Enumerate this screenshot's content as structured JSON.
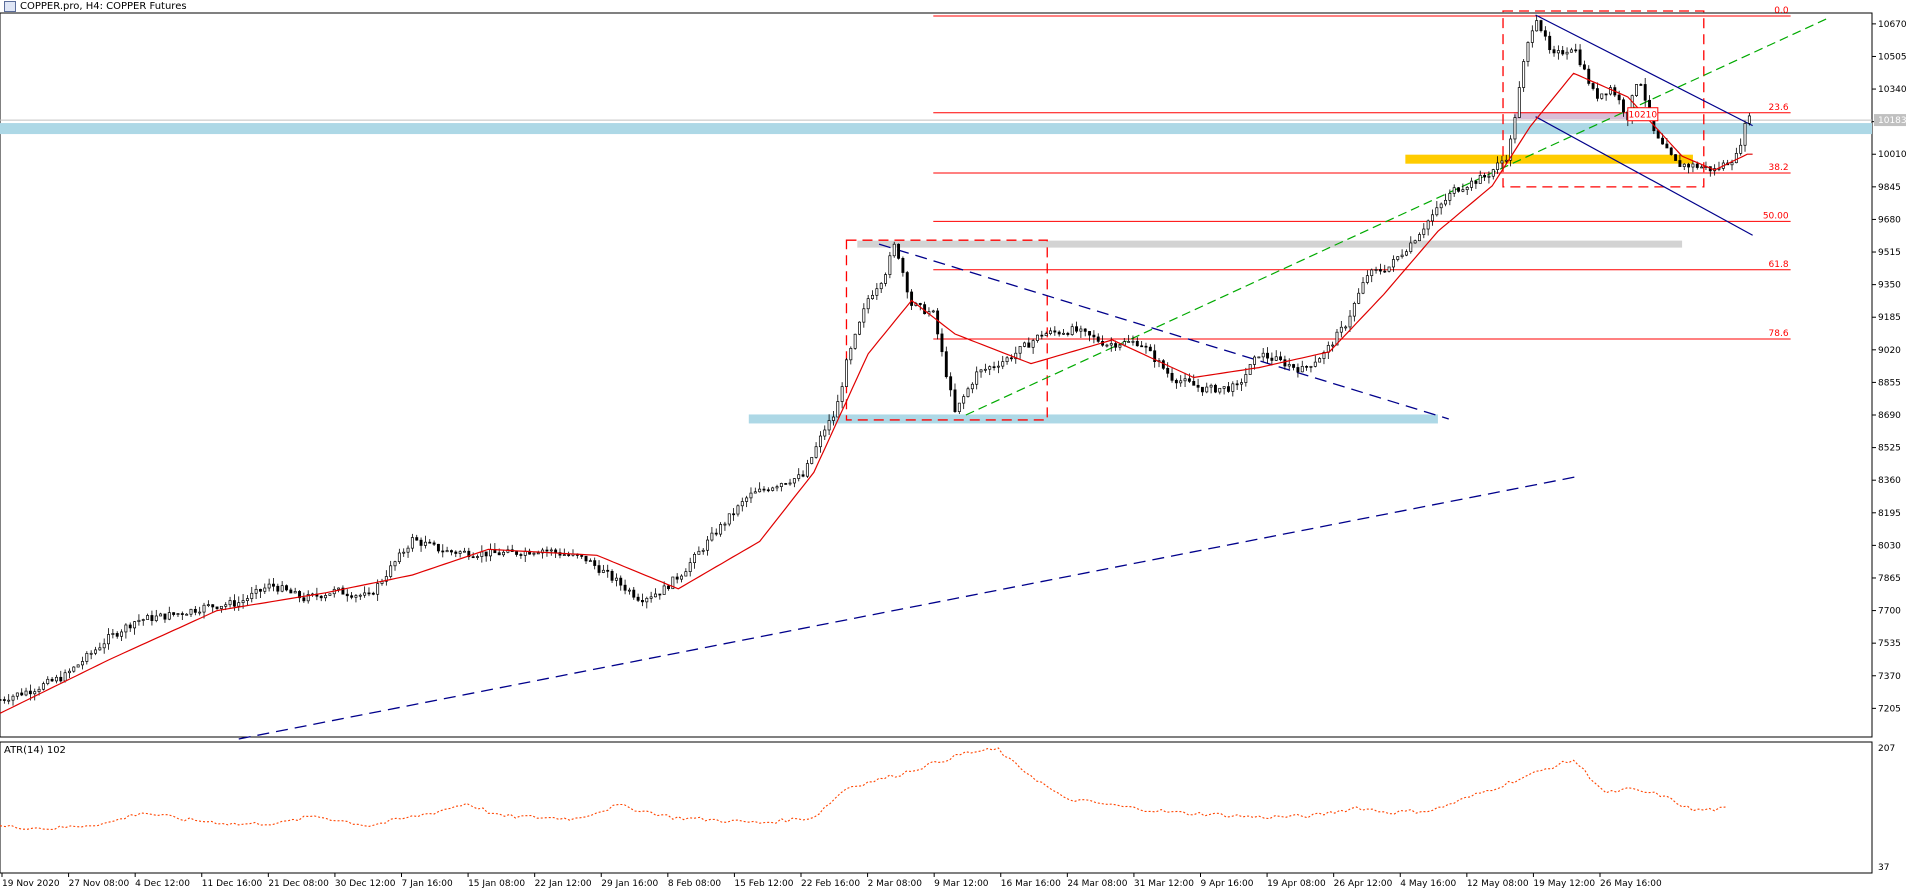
{
  "header": {
    "title": "COPPER.pro, H4:  COPPER Futures",
    "icon": "chart-window-icon"
  },
  "colors": {
    "candle": "#000000",
    "ma": "#e00000",
    "fib": "#ff0000",
    "support_zone": "#add8e6",
    "resistance_zone": "#d3d3d3",
    "yellow_zone": "#ffcc00",
    "purple_zone": "#d8bfd8",
    "channel": "#00008b",
    "trend_green": "#00aa00",
    "atr": "#ff4500",
    "price_marker": "#c0c0c0"
  },
  "chart_data": {
    "type": "candlestick",
    "symbol": "COPPER.pro",
    "timeframe": "H4",
    "description_text": "COPPER Futures",
    "y_ticks": [
      10670,
      10505,
      10340,
      10175,
      10010,
      9845,
      9680,
      9515,
      9350,
      9185,
      9020,
      8855,
      8690,
      8525,
      8360,
      8195,
      8030,
      7865,
      7700,
      7535,
      7370,
      7205
    ],
    "y_range": [
      7060,
      10725
    ],
    "current_price_label": "10183",
    "current_price": 10183,
    "x_labels": [
      "19 Nov 2020",
      "27 Nov 08:00",
      "4 Dec 12:00",
      "11 Dec 16:00",
      "21 Dec 08:00",
      "30 Dec 12:00",
      "7 Jan 16:00",
      "15 Jan 08:00",
      "22 Jan 12:00",
      "29 Jan 16:00",
      "8 Feb 08:00",
      "15 Feb 12:00",
      "22 Feb 16:00",
      "2 Mar 08:00",
      "9 Mar 12:00",
      "16 Mar 16:00",
      "24 Mar 08:00",
      "31 Mar 12:00",
      "9 Apr 16:00",
      "19 Apr 08:00",
      "26 Apr 12:00",
      "4 May 16:00",
      "12 May 08:00",
      "19 May 12:00",
      "26 May 16:00"
    ],
    "fib_levels": [
      {
        "label": "0.0",
        "price": 10710
      },
      {
        "label": "23.6",
        "price": 10220
      },
      {
        "label": "38.2",
        "price": 9915
      },
      {
        "label": "50.00",
        "price": 9670
      },
      {
        "label": "61.8",
        "price": 9425
      },
      {
        "label": "78.6",
        "price": 9075
      }
    ],
    "price_box_label": "10210",
    "price_path": [
      [
        0,
        7250
      ],
      [
        6,
        7300
      ],
      [
        12,
        7370
      ],
      [
        20,
        7560
      ],
      [
        25,
        7650
      ],
      [
        32,
        7680
      ],
      [
        38,
        7720
      ],
      [
        44,
        7740
      ],
      [
        50,
        7830
      ],
      [
        56,
        7760
      ],
      [
        62,
        7800
      ],
      [
        68,
        7770
      ],
      [
        76,
        8060
      ],
      [
        82,
        8000
      ],
      [
        88,
        7990
      ],
      [
        94,
        7990
      ],
      [
        100,
        8010
      ],
      [
        108,
        7960
      ],
      [
        114,
        7840
      ],
      [
        118,
        7760
      ],
      [
        122,
        7800
      ],
      [
        126,
        7900
      ],
      [
        132,
        8100
      ],
      [
        138,
        8280
      ],
      [
        144,
        8350
      ],
      [
        148,
        8380
      ],
      [
        152,
        8620
      ],
      [
        154,
        8700
      ],
      [
        156,
        8950
      ],
      [
        160,
        9280
      ],
      [
        163,
        9400
      ],
      [
        165,
        9560
      ],
      [
        168,
        9250
      ],
      [
        172,
        9200
      ],
      [
        176,
        8700
      ],
      [
        180,
        8900
      ],
      [
        186,
        8980
      ],
      [
        192,
        9100
      ],
      [
        198,
        9120
      ],
      [
        204,
        9050
      ],
      [
        210,
        9060
      ],
      [
        216,
        8880
      ],
      [
        222,
        8820
      ],
      [
        228,
        8830
      ],
      [
        232,
        9000
      ],
      [
        236,
        8960
      ],
      [
        240,
        8920
      ],
      [
        244,
        9000
      ],
      [
        248,
        9150
      ],
      [
        252,
        9400
      ],
      [
        256,
        9440
      ],
      [
        260,
        9560
      ],
      [
        264,
        9700
      ],
      [
        268,
        9830
      ],
      [
        274,
        9900
      ],
      [
        278,
        10010
      ],
      [
        281,
        10500
      ],
      [
        283,
        10720
      ],
      [
        286,
        10500
      ],
      [
        290,
        10560
      ],
      [
        294,
        10300
      ],
      [
        297,
        10350
      ],
      [
        300,
        10200
      ],
      [
        302,
        10420
      ],
      [
        305,
        10100
      ],
      [
        309,
        9960
      ],
      [
        313,
        9950
      ],
      [
        316,
        9930
      ],
      [
        320,
        10000
      ],
      [
        323,
        10280
      ]
    ],
    "ma_path": [
      [
        0,
        7180
      ],
      [
        20,
        7450
      ],
      [
        40,
        7700
      ],
      [
        60,
        7790
      ],
      [
        76,
        7880
      ],
      [
        90,
        8010
      ],
      [
        110,
        7980
      ],
      [
        125,
        7810
      ],
      [
        140,
        8050
      ],
      [
        150,
        8400
      ],
      [
        160,
        9000
      ],
      [
        168,
        9270
      ],
      [
        176,
        9100
      ],
      [
        190,
        8950
      ],
      [
        205,
        9070
      ],
      [
        220,
        8880
      ],
      [
        232,
        8930
      ],
      [
        245,
        9010
      ],
      [
        255,
        9300
      ],
      [
        265,
        9620
      ],
      [
        275,
        9850
      ],
      [
        282,
        10150
      ],
      [
        290,
        10420
      ],
      [
        300,
        10300
      ],
      [
        310,
        10000
      ],
      [
        316,
        9930
      ],
      [
        322,
        10010
      ]
    ],
    "x_range": [
      0,
      345
    ],
    "overlays": {
      "support_zone_upper": {
        "from": 0,
        "to": 345,
        "price": 10140
      },
      "support_zone_lower": {
        "from": 138,
        "to": 265,
        "price": 8670
      },
      "resistance_zone": {
        "from": 158,
        "to": 310,
        "price": 9555
      },
      "yellow_zone": {
        "from": 259,
        "to": 312,
        "price": 9985
      },
      "purple_zone": {
        "from": 279,
        "to": 305,
        "price": 10205
      },
      "box_left": {
        "x": [
          156,
          193
        ],
        "price": [
          8665,
          9575
        ]
      },
      "box_right": {
        "x": [
          277,
          314
        ],
        "price": [
          9845,
          10735
        ]
      },
      "channel_upper": {
        "from": [
          283,
          10715
        ],
        "to": [
          323,
          10155
        ]
      },
      "channel_lower": {
        "from": [
          283,
          10200
        ],
        "to": [
          323,
          9600
        ]
      },
      "triangle_line": {
        "from": [
          162,
          9555
        ],
        "to": [
          267,
          8670
        ]
      },
      "long_trend": {
        "from": [
          44,
          7050
        ],
        "to": [
          291,
          8380
        ]
      },
      "green_trend": {
        "from": [
          178,
          8690
        ],
        "to": [
          337,
          10700
        ]
      }
    },
    "indicator": {
      "name": "ATR(14) 102",
      "y_ticks": [
        207,
        37
      ],
      "y_range": [
        37,
        207
      ],
      "values": [
        [
          0,
          95
        ],
        [
          10,
          92
        ],
        [
          20,
          100
        ],
        [
          26,
          115
        ],
        [
          34,
          105
        ],
        [
          44,
          98
        ],
        [
          52,
          100
        ],
        [
          58,
          110
        ],
        [
          68,
          96
        ],
        [
          80,
          115
        ],
        [
          86,
          128
        ],
        [
          92,
          110
        ],
        [
          106,
          106
        ],
        [
          114,
          125
        ],
        [
          124,
          108
        ],
        [
          140,
          100
        ],
        [
          150,
          108
        ],
        [
          156,
          150
        ],
        [
          166,
          170
        ],
        [
          172,
          185
        ],
        [
          178,
          200
        ],
        [
          184,
          205
        ],
        [
          186,
          190
        ],
        [
          196,
          135
        ],
        [
          208,
          122
        ],
        [
          216,
          115
        ],
        [
          224,
          112
        ],
        [
          232,
          108
        ],
        [
          242,
          110
        ],
        [
          250,
          122
        ],
        [
          256,
          115
        ],
        [
          264,
          118
        ],
        [
          272,
          140
        ],
        [
          286,
          180
        ],
        [
          290,
          190
        ],
        [
          296,
          142
        ],
        [
          300,
          148
        ],
        [
          306,
          140
        ],
        [
          312,
          118
        ],
        [
          318,
          120
        ]
      ]
    }
  }
}
